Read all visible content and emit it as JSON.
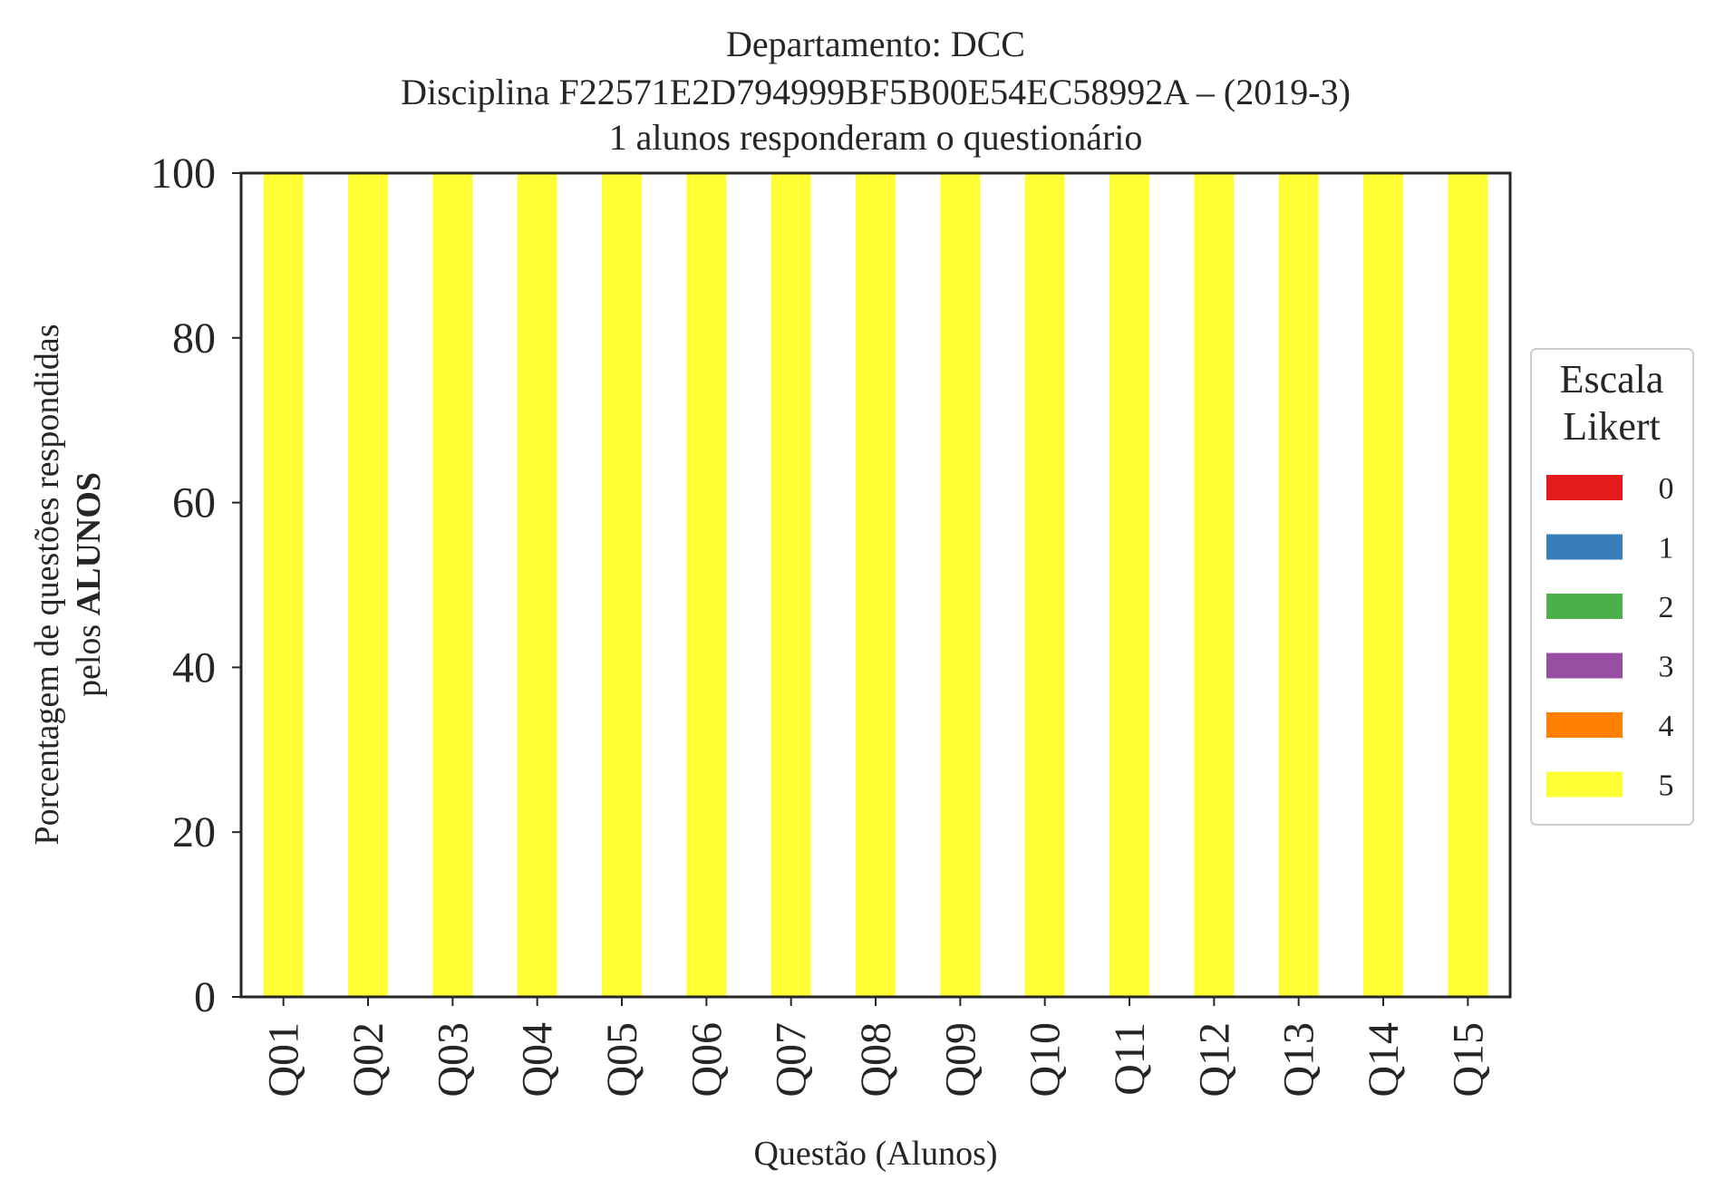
{
  "chart_data": {
    "type": "bar",
    "stacked": true,
    "title": [
      "Departamento: DCC",
      "Disciplina F22571E2D794999BF5B00E54EC58992A – (2019-3)",
      "1 alunos responderam o questionário"
    ],
    "xlabel": "Questão (Alunos)",
    "ylabel_line1": "Porcentagem de questões respondidas",
    "ylabel_line2_prefix": "pelos ",
    "ylabel_line2_bold": "ALUNOS",
    "ylim": [
      0,
      100
    ],
    "yticks": [
      0,
      20,
      40,
      60,
      80,
      100
    ],
    "categories": [
      "Q01",
      "Q02",
      "Q03",
      "Q04",
      "Q05",
      "Q06",
      "Q07",
      "Q08",
      "Q09",
      "Q10",
      "Q11",
      "Q12",
      "Q13",
      "Q14",
      "Q15"
    ],
    "series": [
      {
        "name": "0",
        "color": "#e41a1c",
        "values": [
          0,
          0,
          0,
          0,
          0,
          0,
          0,
          0,
          0,
          0,
          0,
          0,
          0,
          0,
          0
        ]
      },
      {
        "name": "1",
        "color": "#377eb8",
        "values": [
          0,
          0,
          0,
          0,
          0,
          0,
          0,
          0,
          0,
          0,
          0,
          0,
          0,
          0,
          0
        ]
      },
      {
        "name": "2",
        "color": "#4daf4a",
        "values": [
          0,
          0,
          0,
          0,
          0,
          0,
          0,
          0,
          0,
          0,
          0,
          0,
          0,
          0,
          0
        ]
      },
      {
        "name": "3",
        "color": "#984ea3",
        "values": [
          0,
          0,
          0,
          0,
          0,
          0,
          0,
          0,
          0,
          0,
          0,
          0,
          0,
          0,
          0
        ]
      },
      {
        "name": "4",
        "color": "#ff7f00",
        "values": [
          0,
          0,
          0,
          0,
          0,
          0,
          0,
          0,
          0,
          0,
          0,
          0,
          0,
          0,
          0
        ]
      },
      {
        "name": "5",
        "color": "#ffff33",
        "values": [
          100,
          100,
          100,
          100,
          100,
          100,
          100,
          100,
          100,
          100,
          100,
          100,
          100,
          100,
          100
        ]
      }
    ],
    "legend": {
      "title": [
        "Escala",
        "Likert"
      ],
      "placement": "center-right, outside"
    },
    "grid": false
  }
}
